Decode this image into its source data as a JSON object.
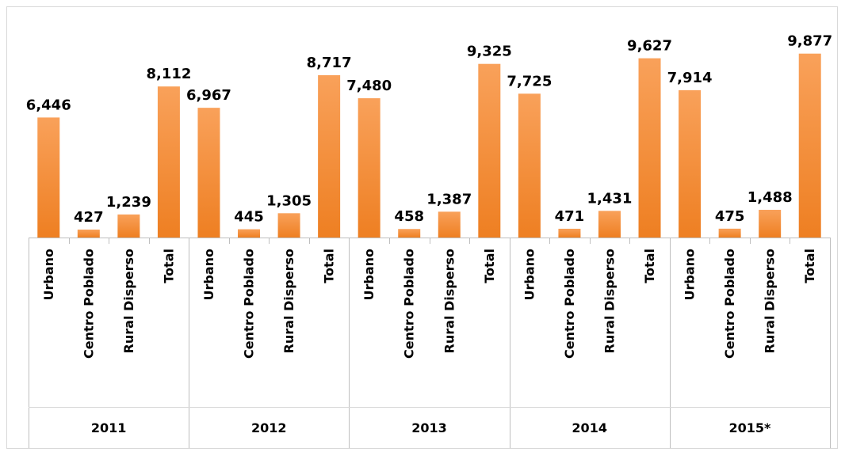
{
  "chart_data": {
    "type": "bar",
    "title": "",
    "xlabel": "",
    "ylabel": "",
    "ylim": [
      0,
      10800
    ],
    "grid": false,
    "legend": "none",
    "bar_color": "#f28a30",
    "groups": [
      {
        "label": "2011",
        "categories": [
          "Urbano",
          "Centro Poblado",
          "Rural Disperso",
          "Total"
        ],
        "values": [
          6446,
          427,
          1239,
          8112
        ],
        "value_labels": [
          "6,446",
          "427",
          "1,239",
          "8,112"
        ]
      },
      {
        "label": "2012",
        "categories": [
          "Urbano",
          "Centro Poblado",
          "Rural Disperso",
          "Total"
        ],
        "values": [
          6967,
          445,
          1305,
          8717
        ],
        "value_labels": [
          "6,967",
          "445",
          "1,305",
          "8,717"
        ]
      },
      {
        "label": "2013",
        "categories": [
          "Urbano",
          "Centro Poblado",
          "Rural Disperso",
          "Total"
        ],
        "values": [
          7480,
          458,
          1387,
          9325
        ],
        "value_labels": [
          "7,480",
          "458",
          "1,387",
          "9,325"
        ]
      },
      {
        "label": "2014",
        "categories": [
          "Urbano",
          "Centro Poblado",
          "Rural Disperso",
          "Total"
        ],
        "values": [
          7725,
          471,
          1431,
          9627
        ],
        "value_labels": [
          "7,725",
          "471",
          "1,431",
          "9,627"
        ]
      },
      {
        "label": "2015*",
        "categories": [
          "Urbano",
          "Centro Poblado",
          "Rural Disperso",
          "Total"
        ],
        "values": [
          7914,
          475,
          1488,
          9877
        ],
        "value_labels": [
          "7,914",
          "475",
          "1,488",
          "9,877"
        ]
      }
    ]
  }
}
